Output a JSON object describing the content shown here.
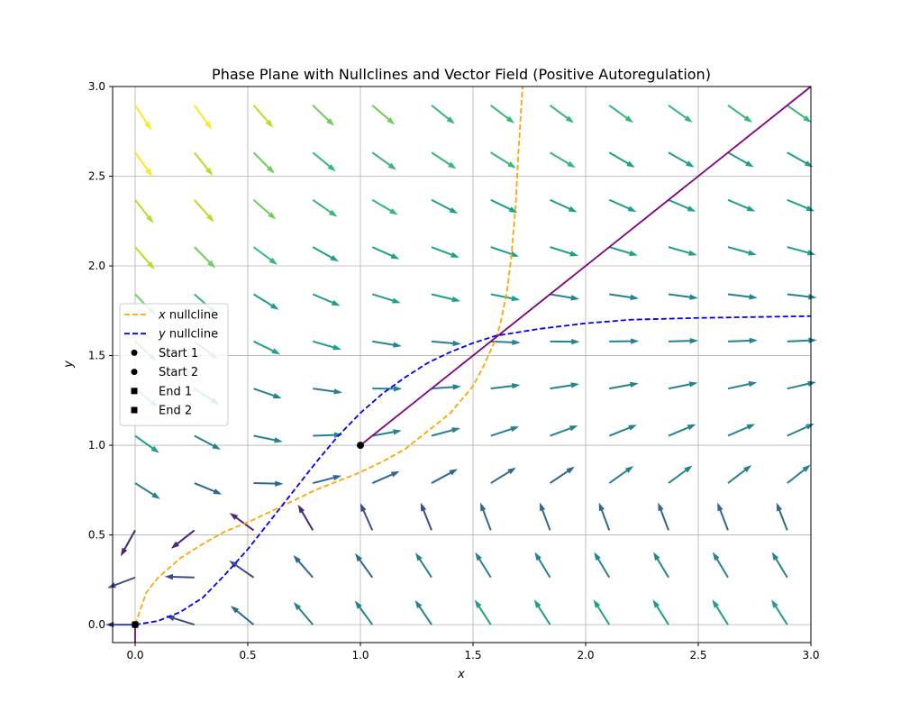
{
  "chart_data": {
    "type": "line",
    "title": "Phase Plane with Nullclines and Vector Field (Positive Autoregulation)",
    "xlabel": "x",
    "ylabel": "y",
    "xlim": [
      -0.1,
      3.0
    ],
    "ylim": [
      -0.1,
      3.0
    ],
    "xticks": [
      "0.0",
      "0.5",
      "1.0",
      "1.5",
      "2.0",
      "2.5",
      "3.0"
    ],
    "yticks": [
      "0.0",
      "0.5",
      "1.0",
      "1.5",
      "2.0",
      "2.5",
      "3.0"
    ],
    "grid": true,
    "legend_position": "center-left",
    "legend": [
      {
        "label": "x nullcline",
        "math": "x",
        "rest": " nullcline",
        "kind": "dashed",
        "color": "#ffa500"
      },
      {
        "label": "y nullcline",
        "math": "y",
        "rest": " nullcline",
        "kind": "dashed",
        "color": "#0000ff"
      },
      {
        "label": "Start 1",
        "kind": "circle",
        "color": "#000000"
      },
      {
        "label": "Start 2",
        "kind": "circle",
        "color": "#000000"
      },
      {
        "label": "End 1",
        "kind": "square",
        "color": "#000000"
      },
      {
        "label": "End 2",
        "kind": "square",
        "color": "#000000"
      }
    ],
    "x_nullcline": {
      "color": "#ffa500",
      "points": [
        [
          0.0,
          0.0
        ],
        [
          0.05,
          0.18
        ],
        [
          0.1,
          0.26
        ],
        [
          0.2,
          0.37
        ],
        [
          0.3,
          0.45
        ],
        [
          0.4,
          0.52
        ],
        [
          0.5,
          0.57
        ],
        [
          0.6,
          0.63
        ],
        [
          0.7,
          0.69
        ],
        [
          0.8,
          0.75
        ],
        [
          0.9,
          0.8
        ],
        [
          1.0,
          0.85
        ],
        [
          1.1,
          0.91
        ],
        [
          1.2,
          0.98
        ],
        [
          1.3,
          1.08
        ],
        [
          1.4,
          1.18
        ],
        [
          1.5,
          1.33
        ],
        [
          1.55,
          1.45
        ],
        [
          1.6,
          1.59
        ],
        [
          1.62,
          1.67
        ],
        [
          1.65,
          1.85
        ],
        [
          1.67,
          2.05
        ],
        [
          1.69,
          2.35
        ],
        [
          1.7,
          2.6
        ],
        [
          1.71,
          2.8
        ],
        [
          1.72,
          3.0
        ]
      ]
    },
    "y_nullcline": {
      "color": "#0000ff",
      "points": [
        [
          0.0,
          0.0
        ],
        [
          0.1,
          0.02
        ],
        [
          0.2,
          0.07
        ],
        [
          0.3,
          0.15
        ],
        [
          0.4,
          0.28
        ],
        [
          0.5,
          0.42
        ],
        [
          0.6,
          0.58
        ],
        [
          0.7,
          0.74
        ],
        [
          0.8,
          0.9
        ],
        [
          0.9,
          1.05
        ],
        [
          1.0,
          1.18
        ],
        [
          1.1,
          1.29
        ],
        [
          1.2,
          1.38
        ],
        [
          1.3,
          1.46
        ],
        [
          1.4,
          1.52
        ],
        [
          1.5,
          1.57
        ],
        [
          1.6,
          1.61
        ],
        [
          1.8,
          1.65
        ],
        [
          2.0,
          1.68
        ],
        [
          2.2,
          1.7
        ],
        [
          2.5,
          1.71
        ],
        [
          3.0,
          1.72
        ]
      ]
    },
    "trajectories": [
      {
        "color": "#800080",
        "points": [
          [
            1.0,
            1.0
          ],
          [
            3.0,
            3.0
          ]
        ]
      },
      {
        "color": "#800080",
        "points": [
          [
            0.0,
            -0.1
          ],
          [
            0.0,
            0.0
          ]
        ]
      }
    ],
    "markers": [
      {
        "kind": "circle",
        "x": 1.0,
        "y": 1.0,
        "color": "#000000"
      },
      {
        "kind": "circle",
        "x": 0.0,
        "y": 0.0,
        "color": "#000000"
      },
      {
        "kind": "square",
        "x": 0.0,
        "y": 0.0,
        "color": "#000000"
      }
    ],
    "vector_field": {
      "colormap": "viridis",
      "x": [
        0.0,
        0.263,
        0.526,
        0.789,
        1.053,
        1.316,
        1.579,
        1.842,
        2.105,
        2.368,
        2.632,
        2.895
      ],
      "y": [
        0.0,
        0.263,
        0.526,
        0.789,
        1.053,
        1.316,
        1.579,
        1.842,
        2.105,
        2.368,
        2.632,
        2.895
      ]
    }
  }
}
